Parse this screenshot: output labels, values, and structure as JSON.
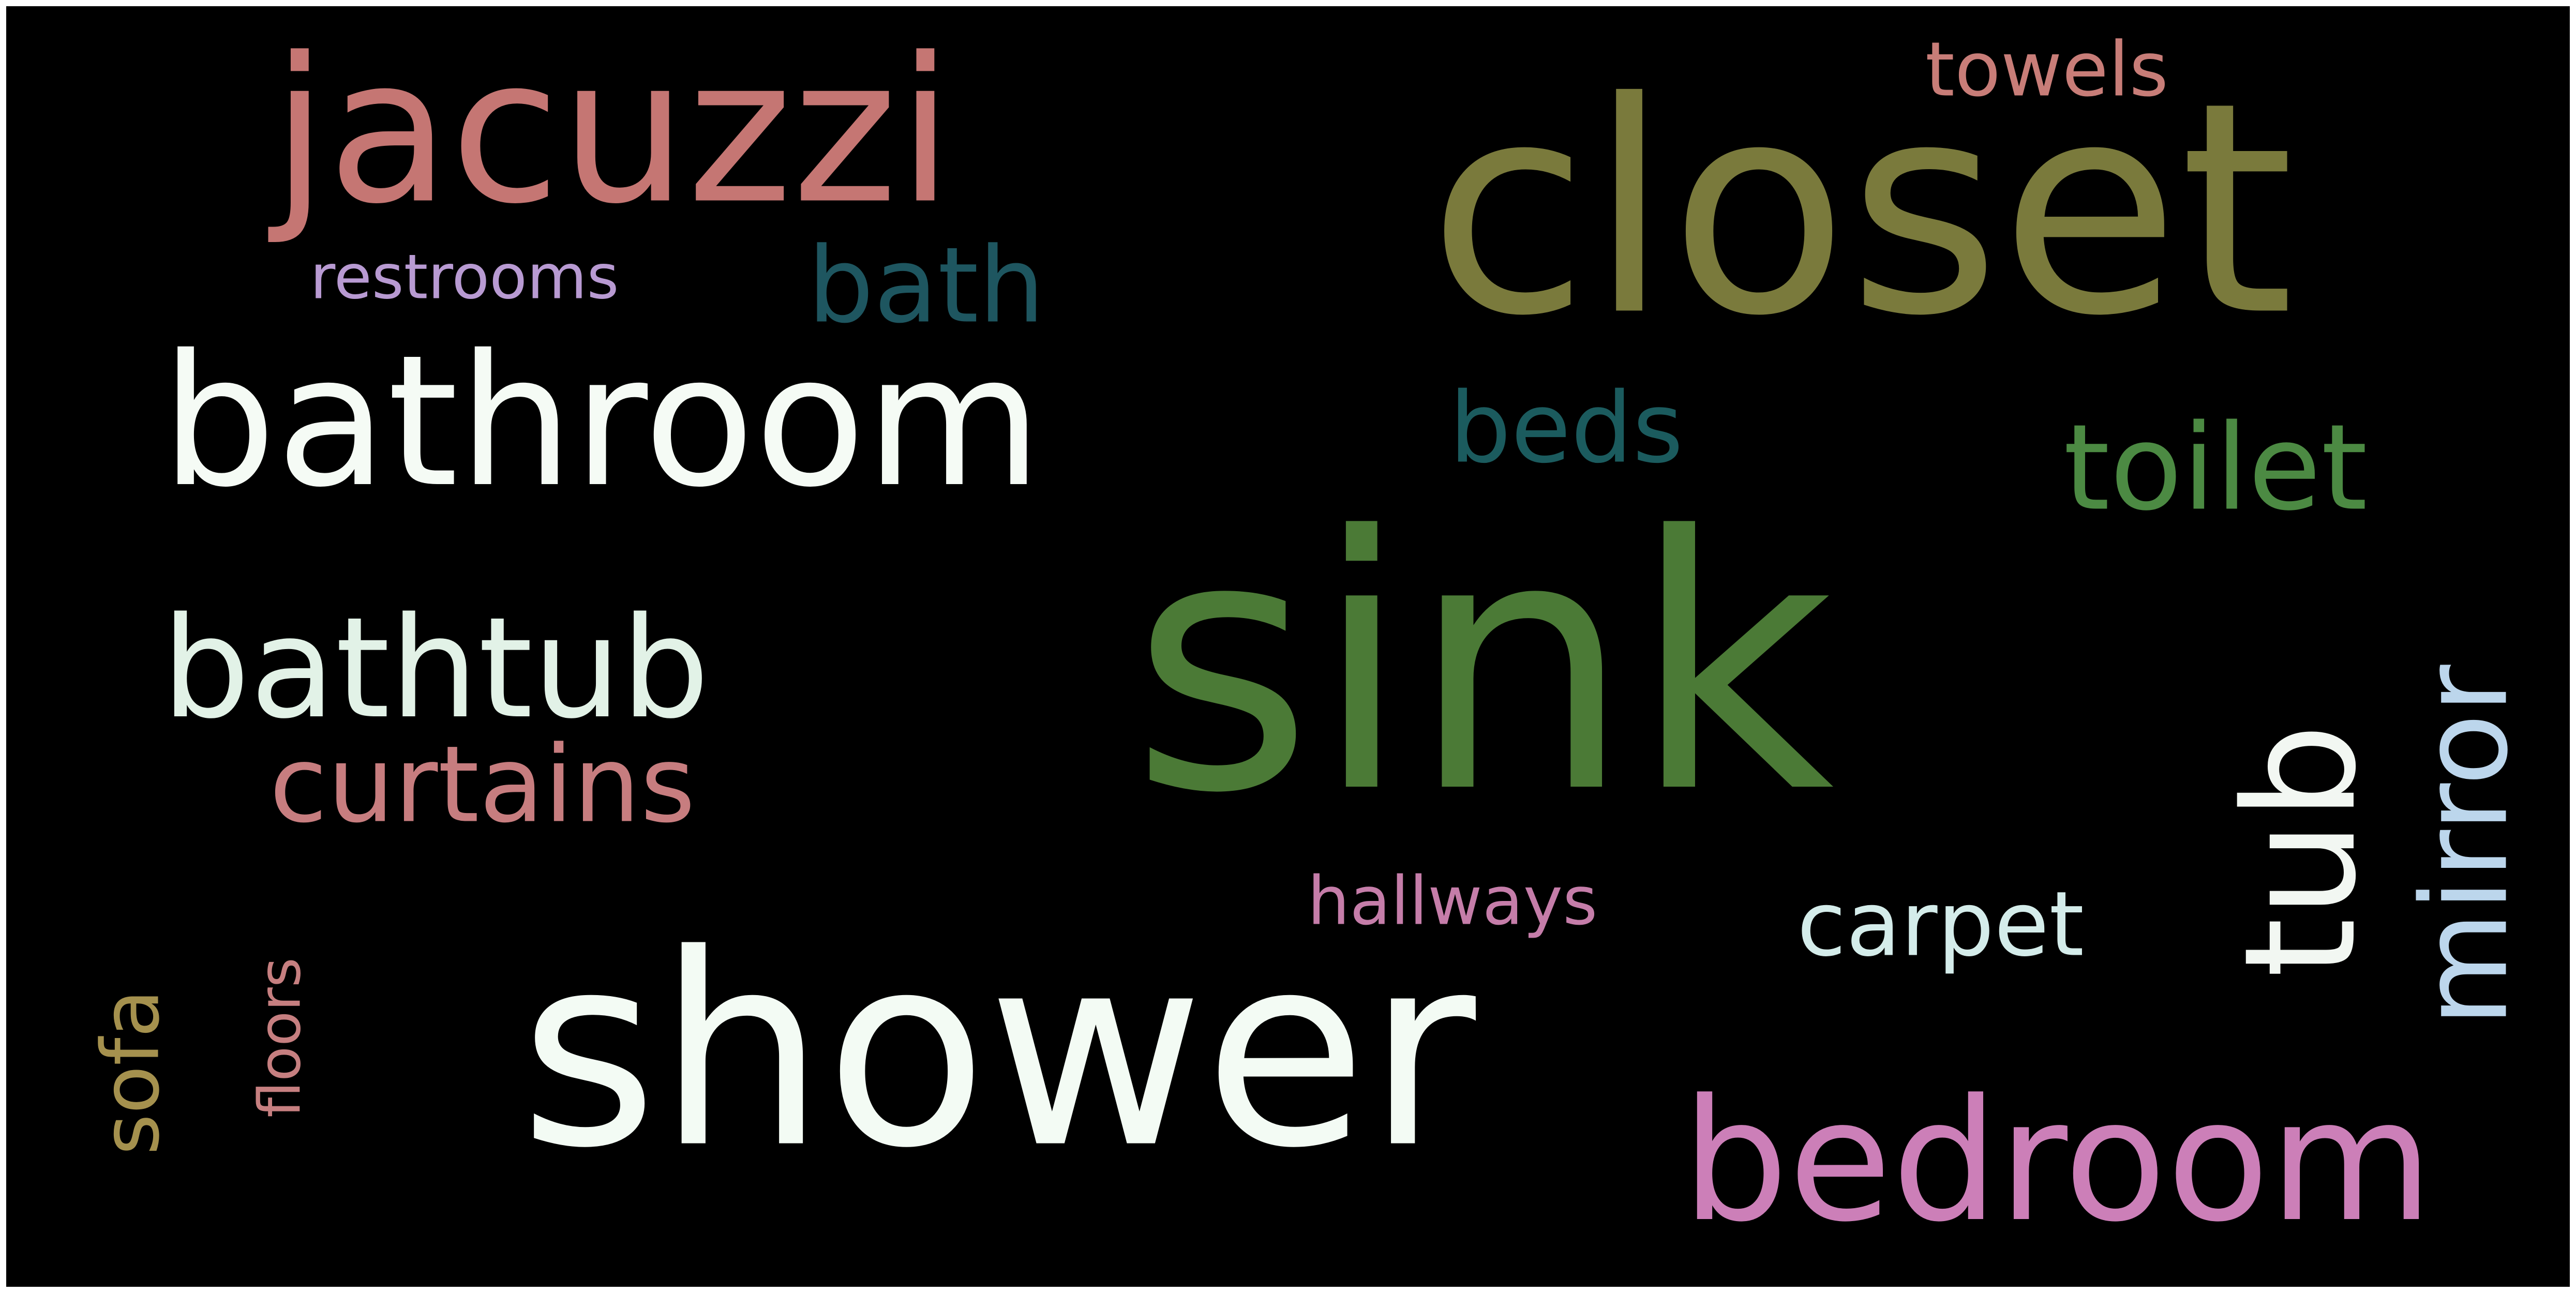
{
  "background": "#000000",
  "words": [
    {
      "text": "sink",
      "color": "#4b7a36",
      "orientation": "horizontal"
    },
    {
      "text": "shower",
      "color": "#f3fbf4",
      "orientation": "horizontal"
    },
    {
      "text": "closet",
      "color": "#7a7a3c",
      "orientation": "horizontal"
    },
    {
      "text": "bathroom",
      "color": "#f5fbf5",
      "orientation": "horizontal"
    },
    {
      "text": "bedroom",
      "color": "#cc7fb8",
      "orientation": "horizontal"
    },
    {
      "text": "jacuzzi",
      "color": "#c57673",
      "orientation": "horizontal"
    },
    {
      "text": "bathtub",
      "color": "#e2f2e7",
      "orientation": "horizontal"
    },
    {
      "text": "toilet",
      "color": "#4c8a43",
      "orientation": "horizontal"
    },
    {
      "text": "tub",
      "color": "#f2f7f2",
      "orientation": "vertical"
    },
    {
      "text": "curtains",
      "color": "#c77d7f",
      "orientation": "horizontal"
    },
    {
      "text": "carpet",
      "color": "#d4ecea",
      "orientation": "horizontal"
    },
    {
      "text": "mirror",
      "color": "#bcd6ec",
      "orientation": "vertical"
    },
    {
      "text": "bath",
      "color": "#1e5660",
      "orientation": "horizontal"
    },
    {
      "text": "beds",
      "color": "#1b5b5e",
      "orientation": "horizontal"
    },
    {
      "text": "sofa",
      "color": "#a5914e",
      "orientation": "vertical"
    },
    {
      "text": "towels",
      "color": "#c87d78",
      "orientation": "horizontal"
    },
    {
      "text": "restrooms",
      "color": "#b89ad2",
      "orientation": "horizontal"
    },
    {
      "text": "hallways",
      "color": "#c57da9",
      "orientation": "horizontal"
    },
    {
      "text": "floors",
      "color": "#c67f80",
      "orientation": "vertical"
    }
  ]
}
